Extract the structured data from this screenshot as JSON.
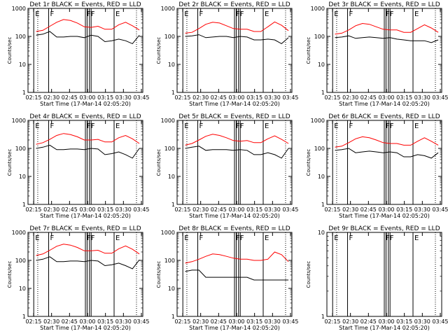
{
  "figure": {
    "x_ticks": [
      "02:15",
      "02:30",
      "02:45",
      "03:00",
      "03:15",
      "03:30",
      "03:45"
    ],
    "x_label": "Start Time (17-Mar-14 02:05:20)",
    "y_label": "Counts/sec",
    "marker_labels": [
      "E",
      "F",
      "F",
      "F",
      "E"
    ]
  },
  "chart_data": [
    {
      "type": "line",
      "title": "Det 1r BLACK = Events, RED = LLD",
      "xlabel": "Start Time (17-Mar-14 02:05:20)",
      "ylabel": "Counts/sec",
      "x_ticks": [
        "02:15",
        "02:30",
        "02:45",
        "03:00",
        "03:15",
        "03:30",
        "03:45"
      ],
      "y_ticks": [
        "1",
        "10",
        "100",
        "1000"
      ],
      "ylim": [
        1,
        1000
      ],
      "series": [
        {
          "name": "Events",
          "color": "#000000",
          "values": [
            110,
            120,
            150,
            95,
            95,
            100,
            100,
            90,
            110,
            100,
            65,
            70,
            80,
            70,
            55,
            110
          ]
        },
        {
          "name": "LLD",
          "color": "#ff0000",
          "values": [
            150,
            165,
            230,
            320,
            400,
            370,
            300,
            220,
            210,
            230,
            180,
            180,
            260,
            320,
            240,
            170
          ]
        }
      ]
    },
    {
      "type": "line",
      "title": "Det 2r BLACK = Events, RED = LLD",
      "xlabel": "Start Time (17-Mar-14 02:05:20)",
      "ylabel": "Counts/sec",
      "x_ticks": [
        "02:15",
        "02:30",
        "02:45",
        "03:00",
        "03:15",
        "03:30",
        "03:45"
      ],
      "y_ticks": [
        "1",
        "10",
        "100",
        "1000"
      ],
      "ylim": [
        1,
        1000
      ],
      "series": [
        {
          "name": "Events",
          "color": "#000000",
          "values": [
            100,
            105,
            115,
            90,
            95,
            100,
            100,
            90,
            100,
            95,
            75,
            75,
            80,
            75,
            55,
            90
          ]
        },
        {
          "name": "LLD",
          "color": "#ff0000",
          "values": [
            130,
            140,
            190,
            270,
            320,
            300,
            240,
            190,
            180,
            180,
            150,
            150,
            220,
            330,
            250,
            160
          ]
        }
      ]
    },
    {
      "type": "line",
      "title": "Det 3r BLACK = Events, RED = LLD",
      "xlabel": "Start Time (17-Mar-14 02:05:20)",
      "ylabel": "Counts/sec",
      "x_ticks": [
        "02:15",
        "02:30",
        "02:45",
        "03:00",
        "03:15",
        "03:30",
        "03:45"
      ],
      "y_ticks": [
        "1",
        "10",
        "100",
        "1000"
      ],
      "ylim": [
        1,
        1000
      ],
      "series": [
        {
          "name": "Events",
          "color": "#000000",
          "values": [
            90,
            95,
            105,
            85,
            90,
            95,
            90,
            85,
            90,
            80,
            75,
            70,
            70,
            70,
            60,
            75
          ]
        },
        {
          "name": "LLD",
          "color": "#ff0000",
          "values": [
            120,
            130,
            170,
            240,
            290,
            270,
            220,
            180,
            170,
            170,
            140,
            140,
            190,
            260,
            200,
            140
          ]
        }
      ]
    },
    {
      "type": "line",
      "title": "Det 4r BLACK = Events, RED = LLD",
      "xlabel": "Start Time (17-Mar-14 02:05:20)",
      "ylabel": "Counts/sec",
      "x_ticks": [
        "02:15",
        "02:30",
        "02:45",
        "03:00",
        "03:15",
        "03:30",
        "03:45"
      ],
      "y_ticks": [
        "1",
        "10",
        "100",
        "1000"
      ],
      "ylim": [
        1,
        1000
      ],
      "series": [
        {
          "name": "Events",
          "color": "#000000",
          "values": [
            100,
            110,
            130,
            90,
            90,
            95,
            95,
            90,
            100,
            95,
            60,
            65,
            75,
            60,
            45,
            100
          ]
        },
        {
          "name": "LLD",
          "color": "#ff0000",
          "values": [
            140,
            160,
            210,
            290,
            340,
            310,
            260,
            200,
            200,
            210,
            170,
            170,
            240,
            290,
            220,
            150
          ]
        }
      ]
    },
    {
      "type": "line",
      "title": "Det 5r BLACK = Events, RED = LLD",
      "xlabel": "Start Time (17-Mar-14 02:05:20)",
      "ylabel": "Counts/sec",
      "x_ticks": [
        "02:15",
        "02:30",
        "02:45",
        "03:00",
        "03:15",
        "03:30",
        "03:45"
      ],
      "y_ticks": [
        "1",
        "10",
        "100",
        "1000"
      ],
      "ylim": [
        1,
        1000
      ],
      "series": [
        {
          "name": "Events",
          "color": "#000000",
          "values": [
            100,
            110,
            120,
            85,
            90,
            90,
            90,
            85,
            90,
            85,
            60,
            60,
            70,
            60,
            45,
            100
          ]
        },
        {
          "name": "LLD",
          "color": "#ff0000",
          "values": [
            130,
            150,
            200,
            270,
            320,
            290,
            240,
            190,
            180,
            190,
            160,
            160,
            220,
            280,
            210,
            150
          ]
        }
      ]
    },
    {
      "type": "line",
      "title": "Det 6r BLACK = Events, RED = LLD",
      "xlabel": "Start Time (17-Mar-14 02:05:20)",
      "ylabel": "Counts/sec",
      "x_ticks": [
        "02:15",
        "02:30",
        "02:45",
        "03:00",
        "03:15",
        "03:30",
        "03:45"
      ],
      "y_ticks": [
        "1",
        "10",
        "100",
        "1000"
      ],
      "ylim": [
        1,
        1000
      ],
      "series": [
        {
          "name": "Events",
          "color": "#000000",
          "values": [
            85,
            90,
            100,
            70,
            75,
            80,
            75,
            70,
            75,
            70,
            50,
            50,
            60,
            55,
            45,
            70
          ]
        },
        {
          "name": "LLD",
          "color": "#ff0000",
          "values": [
            110,
            120,
            160,
            220,
            260,
            240,
            200,
            160,
            150,
            150,
            130,
            130,
            180,
            240,
            180,
            130
          ]
        }
      ]
    },
    {
      "type": "line",
      "title": "Det 7r BLACK = Events, RED = LLD",
      "xlabel": "Start Time (17-Mar-14 02:05:20)",
      "ylabel": "Counts/sec",
      "x_ticks": [
        "02:15",
        "02:30",
        "02:45",
        "03:00",
        "03:15",
        "03:30",
        "03:45"
      ],
      "y_ticks": [
        "1",
        "10",
        "100",
        "1000"
      ],
      "ylim": [
        1,
        1000
      ],
      "series": [
        {
          "name": "Events",
          "color": "#000000",
          "values": [
            100,
            110,
            135,
            90,
            90,
            95,
            95,
            90,
            100,
            95,
            65,
            70,
            80,
            65,
            50,
            105
          ]
        },
        {
          "name": "LLD",
          "color": "#ff0000",
          "values": [
            150,
            170,
            230,
            320,
            380,
            350,
            290,
            220,
            220,
            230,
            180,
            180,
            260,
            330,
            250,
            170
          ]
        }
      ]
    },
    {
      "type": "line",
      "title": "Det 8r BLACK = Events, RED = LLD",
      "xlabel": "Start Time (17-Mar-14 02:05:20)",
      "ylabel": "Counts/sec",
      "x_ticks": [
        "02:15",
        "02:30",
        "02:45",
        "03:00",
        "03:15",
        "03:30",
        "03:45"
      ],
      "y_ticks": [
        "1",
        "10",
        "100",
        "1000"
      ],
      "ylim": [
        1,
        1000
      ],
      "series": [
        {
          "name": "Events",
          "color": "#000000",
          "values": [
            40,
            45,
            45,
            25,
            25,
            25,
            25,
            25,
            25,
            25,
            20,
            20,
            20,
            20,
            20,
            20
          ]
        },
        {
          "name": "LLD",
          "color": "#ff0000",
          "values": [
            80,
            90,
            110,
            140,
            170,
            160,
            140,
            120,
            110,
            110,
            100,
            100,
            110,
            200,
            160,
            90
          ]
        }
      ]
    },
    {
      "type": "line",
      "title": "Det 9r BLACK = Events, RED = LLD",
      "xlabel": "Start Time (17-Mar-14 02:05:20)",
      "ylabel": "Counts/sec",
      "x_ticks": [
        "02:15",
        "02:30",
        "02:45",
        "03:00",
        "03:15",
        "03:30",
        "03:45"
      ],
      "y_ticks": [
        "1",
        "10"
      ],
      "ylim": [
        1,
        10
      ],
      "series": [
        {
          "name": "Events",
          "color": "#000000",
          "values": [
            1,
            1,
            1,
            1,
            1,
            1,
            1,
            1,
            1,
            1,
            1,
            1,
            1,
            1,
            1,
            1
          ]
        }
      ]
    }
  ]
}
